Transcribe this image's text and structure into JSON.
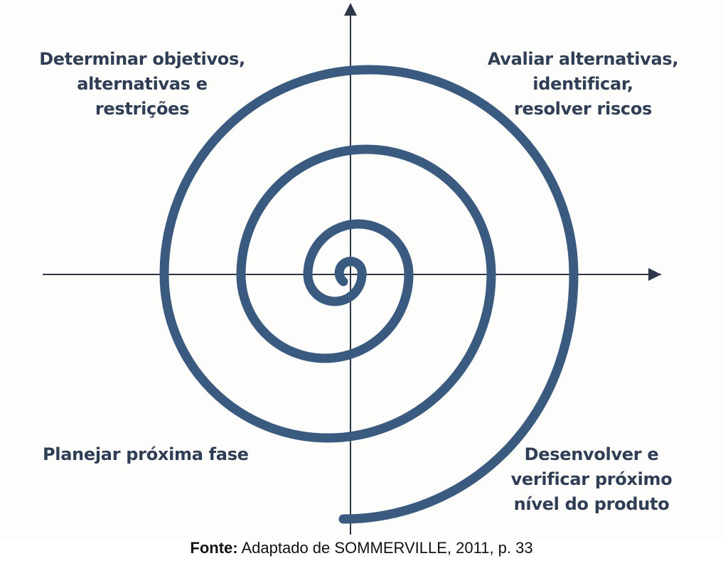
{
  "diagram": {
    "quadrants": {
      "top_left": "Determinar objetivos,\nalternativas e\nrestrições",
      "top_right": "Avaliar alternativas,\nidentificar,\nresolver riscos",
      "bottom_left": "Planejar próxima fase",
      "bottom_right": "Desenvolver e\nverificar próximo\nnível do produto"
    },
    "colors": {
      "spiral": "#3b5a7f",
      "axes": "#2e3648"
    }
  },
  "caption": {
    "label": "Fonte:",
    "text": " Adaptado de SOMMERVILLE, 2011, p. 33"
  }
}
